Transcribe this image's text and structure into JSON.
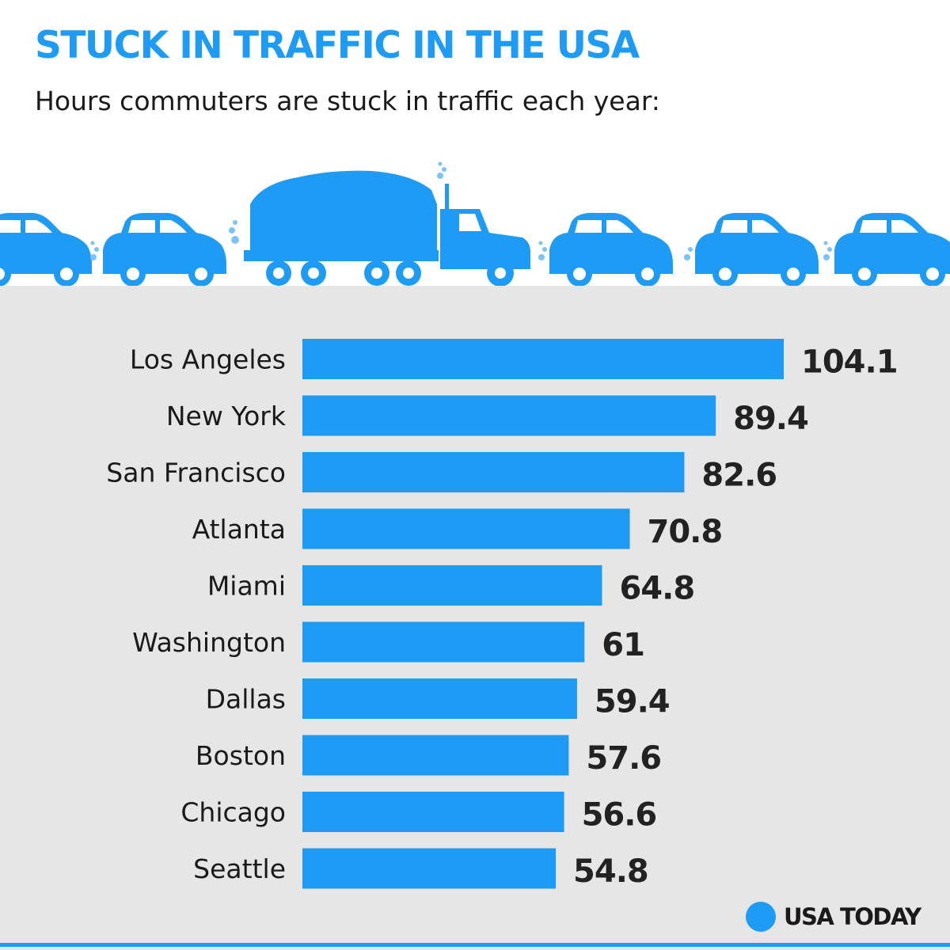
{
  "header": {
    "title": "STUCK IN TRAFFIC IN THE USA",
    "subtitle": "Hours commuters are stuck in traffic each year:"
  },
  "illustration": {
    "icons": [
      "car-icon",
      "car-icon",
      "dump-truck-icon",
      "car-icon",
      "car-icon",
      "car-icon"
    ]
  },
  "colors": {
    "accent": "#1e9bf5",
    "panel": "#e6e6e6",
    "text": "#1a1a1a"
  },
  "chart_data": {
    "type": "bar",
    "orientation": "horizontal",
    "title": "STUCK IN TRAFFIC IN THE USA",
    "subtitle": "Hours commuters are stuck in traffic each year:",
    "xlabel": "",
    "ylabel": "",
    "xlim": [
      0,
      104.1
    ],
    "grid": false,
    "legend": "none",
    "categories": [
      "Los Angeles",
      "New York",
      "San Francisco",
      "Atlanta",
      "Miami",
      "Washington",
      "Dallas",
      "Boston",
      "Chicago",
      "Seattle"
    ],
    "values": [
      104.1,
      89.4,
      82.6,
      70.8,
      64.8,
      61,
      59.4,
      57.6,
      56.6,
      54.8
    ],
    "value_labels": [
      "104.1",
      "89.4",
      "82.6",
      "70.8",
      "64.8",
      "61",
      "59.4",
      "57.6",
      "56.6",
      "54.8"
    ]
  },
  "footer": {
    "brand": "USA TODAY"
  }
}
